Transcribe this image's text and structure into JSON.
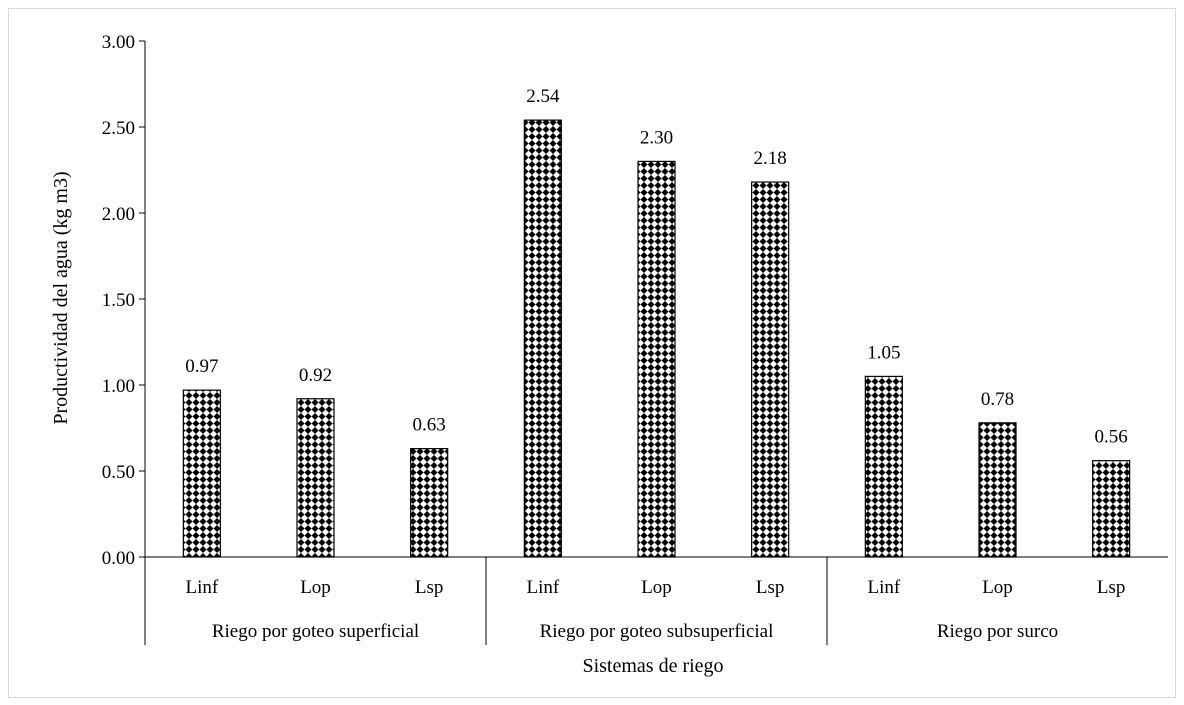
{
  "chart_data": {
    "type": "bar",
    "ylabel": "Productividad del agua (kg m3)",
    "xlabel": "Sistemas de riego",
    "ylim": [
      0,
      3
    ],
    "yticks": [
      "0.00",
      "0.50",
      "1.00",
      "1.50",
      "2.00",
      "2.50",
      "3.00"
    ],
    "grid": false,
    "legend": "none",
    "groups": [
      {
        "name": "Riego por goteo superficial",
        "categories": [
          "Linf",
          "Lop",
          "Lsp"
        ],
        "values": [
          0.97,
          0.92,
          0.63
        ],
        "labels": [
          "0.97",
          "0.92",
          "0.63"
        ]
      },
      {
        "name": "Riego por goteo subsuperficial",
        "categories": [
          "Linf",
          "Lop",
          "Lsp"
        ],
        "values": [
          2.54,
          2.3,
          2.18
        ],
        "labels": [
          "2.54",
          "2.30",
          "2.18"
        ]
      },
      {
        "name": "Riego por surco",
        "categories": [
          "Linf",
          "Lop",
          "Lsp"
        ],
        "values": [
          1.05,
          0.78,
          0.56
        ],
        "labels": [
          "1.05",
          "0.78",
          "0.56"
        ]
      }
    ],
    "bar_pattern": "black-diamond-checker",
    "colors": {
      "bar_fill": "#000000",
      "bar_pattern_bg": "#ffffff",
      "axis": "#000000",
      "frame": "#d9d9d9"
    }
  }
}
